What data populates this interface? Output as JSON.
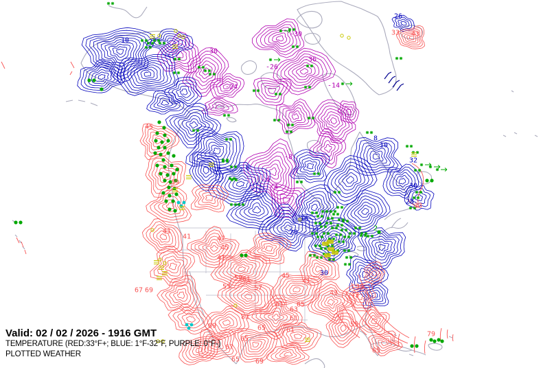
{
  "footer": {
    "valid": "Valid: 02 / 02 / 2026  -  1916 GMT",
    "legend": "TEMPERATURE (RED:33°F+; BLUE: 1°F-32°F, PURPLE: 0°F-)",
    "product": "PLOTTED WEATHER"
  },
  "colors": {
    "warm": "#f85050",
    "cold": "#0000bb",
    "arctic": "#b000b0",
    "station": "#00a800",
    "haze": "#c8c800",
    "drizzle": "#00c8c8",
    "coast": "#a9a9bb",
    "barb": "#000090"
  },
  "contour_labels": [
    [
      "-30",
      308,
      74,
      "p"
    ],
    [
      "-24",
      337,
      126,
      "p"
    ],
    [
      "-30",
      431,
      49,
      "p"
    ],
    [
      "-36",
      452,
      86,
      "p"
    ],
    [
      "-26",
      396,
      97,
      "p"
    ],
    [
      "-14",
      486,
      124,
      "p"
    ],
    [
      "-4",
      387,
      261,
      "p"
    ],
    [
      "4",
      402,
      272,
      "p"
    ],
    [
      "-8",
      420,
      228,
      "p"
    ],
    [
      "10",
      182,
      58,
      "b"
    ],
    [
      "12",
      316,
      246,
      "b"
    ],
    [
      "2",
      351,
      247,
      "b"
    ],
    [
      "0",
      361,
      244,
      "b"
    ],
    [
      "16",
      443,
      318,
      "b"
    ],
    [
      "20",
      428,
      338,
      "b"
    ],
    [
      "30",
      472,
      397,
      "b"
    ],
    [
      "8",
      547,
      201,
      "b"
    ],
    [
      "10",
      559,
      211,
      "b"
    ],
    [
      "32",
      602,
      233,
      "b"
    ],
    [
      "30",
      602,
      270,
      "b"
    ],
    [
      "28",
      597,
      293,
      "b"
    ],
    [
      "26",
      580,
      23,
      "b"
    ],
    [
      "2",
      547,
      332,
      "g"
    ],
    [
      "45",
      217,
      184,
      "r"
    ],
    [
      "39",
      255,
      265,
      "r"
    ],
    [
      "41",
      243,
      336,
      "r"
    ],
    [
      "41",
      272,
      344,
      "r"
    ],
    [
      "47",
      322,
      347,
      "r"
    ],
    [
      "45",
      327,
      360,
      "r"
    ],
    [
      "41",
      322,
      375,
      "r"
    ],
    [
      "53",
      330,
      417,
      "r"
    ],
    [
      "59",
      347,
      404,
      "r"
    ],
    [
      "61",
      359,
      406,
      "r"
    ],
    [
      "57",
      376,
      419,
      "r"
    ],
    [
      "45",
      416,
      401,
      "r"
    ],
    [
      "41",
      446,
      409,
      "r"
    ],
    [
      "43",
      486,
      426,
      "r"
    ],
    [
      "61",
      407,
      443,
      "r"
    ],
    [
      "63",
      428,
      450,
      "r"
    ],
    [
      "65",
      438,
      443,
      "r"
    ],
    [
      "61",
      428,
      463,
      "r"
    ],
    [
      "61",
      423,
      480,
      "r"
    ],
    [
      "81",
      357,
      461,
      "r"
    ],
    [
      "69",
      309,
      474,
      "r"
    ],
    [
      "65",
      381,
      477,
      "r"
    ],
    [
      "65",
      356,
      493,
      "r"
    ],
    [
      "67",
      334,
      505,
      "r"
    ],
    [
      "65",
      343,
      523,
      "r"
    ],
    [
      "69",
      378,
      526,
      "r"
    ],
    [
      "67",
      202,
      422,
      "r"
    ],
    [
      "69",
      217,
      422,
      "r"
    ],
    [
      "39",
      524,
      417,
      "r"
    ],
    [
      "43",
      517,
      429,
      "r"
    ],
    [
      "55",
      516,
      472,
      "r"
    ],
    [
      "65",
      548,
      510,
      "r"
    ],
    [
      "79",
      628,
      486,
      "r"
    ],
    [
      "33",
      609,
      299,
      "r"
    ],
    [
      "33",
      576,
      47,
      "r"
    ],
    [
      "43",
      605,
      49,
      "r"
    ]
  ],
  "contour_cells": [
    [
      "p",
      262,
      80,
      30,
      26,
      6
    ],
    [
      "p",
      300,
      104,
      32,
      30,
      7
    ],
    [
      "p",
      330,
      126,
      22,
      18,
      5
    ],
    [
      "p",
      408,
      56,
      36,
      24,
      7
    ],
    [
      "p",
      443,
      104,
      38,
      32,
      8
    ],
    [
      "p",
      396,
      132,
      26,
      20,
      5
    ],
    [
      "p",
      430,
      170,
      28,
      22,
      6
    ],
    [
      "p",
      486,
      176,
      32,
      26,
      7
    ],
    [
      "p",
      508,
      163,
      16,
      14,
      4
    ],
    [
      "p",
      478,
      216,
      22,
      24,
      5
    ],
    [
      "p",
      398,
      250,
      38,
      40,
      8
    ],
    [
      "p",
      417,
      292,
      24,
      24,
      5
    ],
    [
      "p",
      320,
      156,
      24,
      12,
      4
    ],
    [
      "b",
      175,
      75,
      48,
      36,
      10
    ],
    [
      "b",
      215,
      108,
      40,
      32,
      9
    ],
    [
      "b",
      148,
      112,
      32,
      24,
      7
    ],
    [
      "b",
      250,
      62,
      30,
      18,
      6
    ],
    [
      "b",
      268,
      134,
      24,
      20,
      5
    ],
    [
      "b",
      240,
      150,
      24,
      16,
      5
    ],
    [
      "b",
      282,
      182,
      34,
      28,
      7
    ],
    [
      "b",
      316,
      220,
      40,
      32,
      8
    ],
    [
      "b",
      300,
      248,
      26,
      24,
      6
    ],
    [
      "b",
      350,
      268,
      38,
      32,
      8
    ],
    [
      "b",
      374,
      306,
      36,
      30,
      7
    ],
    [
      "b",
      420,
      332,
      40,
      28,
      8
    ],
    [
      "b",
      458,
      302,
      32,
      28,
      7
    ],
    [
      "b",
      452,
      242,
      26,
      24,
      6
    ],
    [
      "b",
      510,
      262,
      34,
      32,
      7
    ],
    [
      "b",
      532,
      308,
      32,
      28,
      7
    ],
    [
      "b",
      486,
      348,
      38,
      26,
      8
    ],
    [
      "b",
      548,
      228,
      34,
      28,
      7
    ],
    [
      "b",
      586,
      264,
      24,
      26,
      6
    ],
    [
      "b",
      556,
      360,
      32,
      28,
      7
    ],
    [
      "b",
      532,
      400,
      28,
      24,
      6
    ],
    [
      "b",
      546,
      430,
      20,
      18,
      5
    ],
    [
      "b",
      588,
      34,
      15,
      11,
      4
    ],
    [
      "b",
      610,
      288,
      18,
      20,
      4
    ],
    [
      "r",
      230,
      205,
      26,
      24,
      6
    ],
    [
      "r",
      240,
      255,
      28,
      28,
      6
    ],
    [
      "r",
      248,
      300,
      28,
      26,
      6
    ],
    [
      "r",
      305,
      288,
      26,
      20,
      5
    ],
    [
      "r",
      238,
      345,
      26,
      24,
      6
    ],
    [
      "r",
      252,
      388,
      28,
      28,
      6
    ],
    [
      "r",
      264,
      430,
      28,
      26,
      6
    ],
    [
      "r",
      278,
      465,
      26,
      22,
      5
    ],
    [
      "r",
      290,
      510,
      28,
      20,
      6
    ],
    [
      "r",
      312,
      362,
      32,
      26,
      7
    ],
    [
      "r",
      352,
      392,
      36,
      28,
      8
    ],
    [
      "r",
      392,
      362,
      28,
      22,
      6
    ],
    [
      "r",
      362,
      432,
      36,
      30,
      8
    ],
    [
      "r",
      402,
      462,
      32,
      26,
      7
    ],
    [
      "r",
      330,
      470,
      28,
      24,
      6
    ],
    [
      "r",
      316,
      502,
      28,
      22,
      6
    ],
    [
      "r",
      372,
      502,
      30,
      24,
      7
    ],
    [
      "r",
      432,
      422,
      32,
      26,
      7
    ],
    [
      "r",
      464,
      392,
      28,
      22,
      6
    ],
    [
      "r",
      482,
      440,
      30,
      26,
      7
    ],
    [
      "r",
      434,
      490,
      28,
      22,
      6
    ],
    [
      "r",
      500,
      478,
      26,
      22,
      6
    ],
    [
      "r",
      524,
      432,
      22,
      20,
      5
    ],
    [
      "r",
      545,
      468,
      20,
      18,
      5
    ],
    [
      "r",
      560,
      500,
      22,
      16,
      5
    ],
    [
      "r",
      600,
      55,
      20,
      16,
      6
    ],
    [
      "r",
      545,
      398,
      16,
      14,
      4
    ],
    [
      "r",
      420,
      516,
      28,
      14,
      5
    ]
  ],
  "stations": [
    [
      "d",
      232,
      178
    ],
    [
      "d",
      239,
      186
    ],
    [
      "d",
      229,
      194
    ],
    [
      "d",
      240,
      197
    ],
    [
      "d",
      227,
      205
    ],
    [
      "d",
      236,
      207
    ],
    [
      "d",
      245,
      205
    ],
    [
      "d",
      231,
      215
    ],
    [
      "d",
      240,
      215
    ],
    [
      "d",
      226,
      223
    ],
    [
      "d",
      234,
      225
    ],
    [
      "d",
      245,
      223
    ],
    [
      "d",
      253,
      227
    ],
    [
      "d",
      238,
      233
    ],
    [
      "d",
      229,
      241
    ],
    [
      "d",
      240,
      243
    ],
    [
      "d",
      250,
      241
    ],
    [
      "d",
      258,
      247
    ],
    [
      "d",
      234,
      253
    ],
    [
      "d",
      244,
      255
    ],
    [
      "d",
      253,
      253
    ],
    [
      "d",
      240,
      263
    ],
    [
      "d",
      248,
      265
    ],
    [
      "d",
      256,
      263
    ],
    [
      "d",
      246,
      273
    ],
    [
      "d",
      254,
      275
    ],
    [
      "d",
      238,
      281
    ],
    [
      "d",
      247,
      285
    ],
    [
      "d",
      257,
      283
    ],
    [
      "d",
      242,
      293
    ],
    [
      "d",
      252,
      293
    ],
    [
      "d",
      247,
      305
    ],
    [
      "d",
      255,
      307
    ],
    [
      "d",
      130,
      117
    ],
    [
      "d",
      137,
      117
    ],
    [
      "d",
      148,
      130
    ],
    [
      "d",
      352,
      372
    ],
    [
      "d",
      358,
      372
    ],
    [
      "d",
      23,
      324
    ],
    [
      "d",
      30,
      324
    ],
    [
      "d",
      622,
      263
    ],
    [
      "d",
      629,
      263
    ],
    [
      "d",
      552,
      338
    ],
    [
      "d",
      600,
      504
    ],
    [
      "d",
      607,
      504
    ],
    [
      "d",
      628,
      495
    ],
    [
      "d",
      633,
      497
    ],
    [
      "d",
      639,
      495
    ],
    [
      "d",
      644,
      497
    ],
    [
      "c",
      260,
      295
    ],
    [
      "c",
      268,
      295
    ],
    [
      "c",
      264,
      300
    ],
    [
      "c",
      272,
      473
    ],
    [
      "c",
      279,
      473
    ],
    [
      "c",
      275,
      478
    ],
    [
      "s",
      158,
      5
    ],
    [
      "s",
      207,
      59
    ],
    [
      "s",
      216,
      63
    ],
    [
      "s",
      225,
      59
    ],
    [
      "s",
      213,
      69
    ],
    [
      "s",
      233,
      63
    ],
    [
      "s",
      254,
      106
    ],
    [
      "s",
      299,
      103
    ],
    [
      "s",
      306,
      108
    ],
    [
      "s",
      255,
      86
    ],
    [
      "s",
      290,
      98
    ],
    [
      "s",
      427,
      68
    ],
    [
      "s",
      448,
      96
    ],
    [
      "s",
      402,
      137
    ],
    [
      "s",
      445,
      127
    ],
    [
      "s",
      370,
      132
    ],
    [
      "s",
      422,
      43
    ],
    [
      "s",
      578,
      85
    ],
    [
      "s",
      535,
      193
    ],
    [
      "s",
      593,
      213
    ],
    [
      "s",
      602,
      222
    ],
    [
      "s",
      605,
      248
    ],
    [
      "s",
      607,
      280
    ],
    [
      "s",
      603,
      288
    ],
    [
      "s",
      598,
      303
    ],
    [
      "s",
      502,
      365
    ],
    [
      "s",
      505,
      375
    ],
    [
      "s",
      503,
      385
    ],
    [
      "s",
      526,
      343
    ],
    [
      "s",
      327,
      168
    ],
    [
      "s",
      400,
      175
    ],
    [
      "s",
      420,
      182
    ],
    [
      "s",
      450,
      172
    ],
    [
      "s",
      418,
      192
    ],
    [
      "s",
      330,
      203
    ],
    [
      "s",
      282,
      190
    ],
    [
      "s",
      325,
      235
    ],
    [
      "s",
      338,
      262
    ],
    [
      "s",
      433,
      265
    ],
    [
      "s",
      488,
      280
    ],
    [
      "s",
      458,
      253
    ],
    [
      "s",
      492,
      302
    ],
    [
      "s",
      482,
      308
    ],
    [
      "s",
      337,
      243
    ],
    [
      "s",
      335,
      260
    ],
    [
      "s",
      337,
      298
    ],
    [
      "s",
      348,
      298
    ],
    [
      "s",
      325,
      233
    ],
    [
      "s",
      455,
      310
    ],
    [
      "s",
      463,
      315
    ],
    [
      "s",
      470,
      308
    ],
    [
      "s",
      478,
      318
    ],
    [
      "s",
      486,
      312
    ],
    [
      "s",
      494,
      320
    ],
    [
      "s",
      460,
      325
    ],
    [
      "s",
      468,
      330
    ],
    [
      "s",
      476,
      325
    ],
    [
      "s",
      484,
      332
    ],
    [
      "s",
      492,
      328
    ],
    [
      "s",
      500,
      322
    ],
    [
      "s",
      455,
      340
    ],
    [
      "s",
      463,
      345
    ],
    [
      "s",
      472,
      340
    ],
    [
      "s",
      480,
      348
    ],
    [
      "s",
      490,
      342
    ],
    [
      "s",
      498,
      335
    ],
    [
      "s",
      460,
      358
    ],
    [
      "s",
      468,
      362
    ],
    [
      "s",
      478,
      358
    ],
    [
      "s",
      486,
      365
    ],
    [
      "s",
      452,
      372
    ],
    [
      "s",
      462,
      375
    ],
    [
      "s",
      472,
      370
    ],
    [
      "s",
      480,
      378
    ],
    [
      "s",
      494,
      352
    ],
    [
      "s",
      502,
      345
    ],
    [
      "s",
      527,
      340
    ],
    [
      "s",
      536,
      344
    ],
    [
      "s",
      518,
      332
    ],
    [
      "s",
      510,
      340
    ],
    [
      "a",
      415,
      45
    ],
    [
      "a",
      400,
      87
    ],
    [
      "a",
      505,
      122
    ],
    [
      "a",
      620,
      240
    ],
    [
      "a",
      633,
      243
    ],
    [
      "a",
      643,
      247
    ],
    [
      "f",
      308,
      240
    ],
    [
      "f",
      275,
      258
    ],
    [
      "f",
      255,
      277
    ],
    [
      "f",
      265,
      303
    ],
    [
      "f",
      228,
      382
    ],
    [
      "f",
      235,
      390
    ],
    [
      "f",
      240,
      398
    ],
    [
      "f",
      232,
      405
    ],
    [
      "f",
      222,
      53
    ],
    [
      "f",
      255,
      68
    ],
    [
      "f",
      603,
      225
    ],
    [
      "f",
      448,
      495
    ],
    [
      "o",
      232,
      52
    ],
    [
      "o",
      256,
      45
    ],
    [
      "o",
      261,
      52
    ],
    [
      "o",
      267,
      54
    ],
    [
      "o",
      498,
      52
    ],
    [
      "o",
      508,
      55
    ],
    [
      "o",
      230,
      497
    ],
    [
      "o",
      237,
      497
    ],
    [
      "o",
      222,
      335
    ],
    [
      "o",
      233,
      378
    ],
    [
      "o",
      240,
      383
    ],
    [
      "o",
      437,
      320
    ],
    [
      "o",
      343,
      445
    ],
    [
      "y",
      474,
      355
    ],
    [
      "y",
      482,
      363
    ],
    [
      "y",
      477,
      372
    ],
    [
      "y",
      488,
      368
    ],
    [
      "y",
      481,
      352
    ],
    [
      "b",
      560,
      115
    ],
    [
      "b",
      566,
      121
    ],
    [
      "b",
      572,
      127
    ],
    [
      "b",
      578,
      132
    ]
  ]
}
